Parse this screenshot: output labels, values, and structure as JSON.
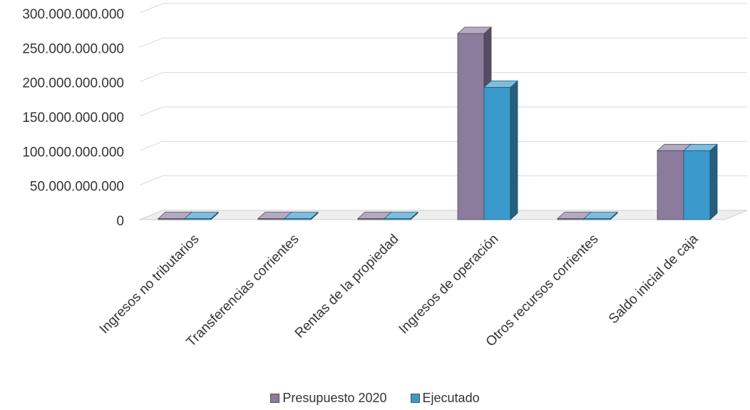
{
  "chart_data": {
    "type": "bar",
    "categories": [
      "Ingresos no tributarios",
      "Transferencias corrientes",
      "Rentas de la propiedad",
      "Ingresos de operación",
      "Otros recursos corrientes",
      "Saldo inicial de caja"
    ],
    "series": [
      {
        "name": "Presupuesto 2020",
        "values": [
          0,
          0,
          0,
          270000000000,
          0,
          100000000000
        ]
      },
      {
        "name": "Ejecutado",
        "values": [
          0,
          0,
          0,
          192000000000,
          0,
          100000000000
        ]
      }
    ],
    "yticks": [
      "0",
      "50.000.000.000",
      "100.000.000.000",
      "150.000.000.000",
      "200.000.000.000",
      "250.000.000.000",
      "300.000.000.000"
    ],
    "ylim": [
      0,
      300000000000
    ],
    "colors": [
      "#8B7C9E",
      "#3B9ACB"
    ],
    "grid": true,
    "legend": "bottom",
    "style": "3d-clustered"
  }
}
